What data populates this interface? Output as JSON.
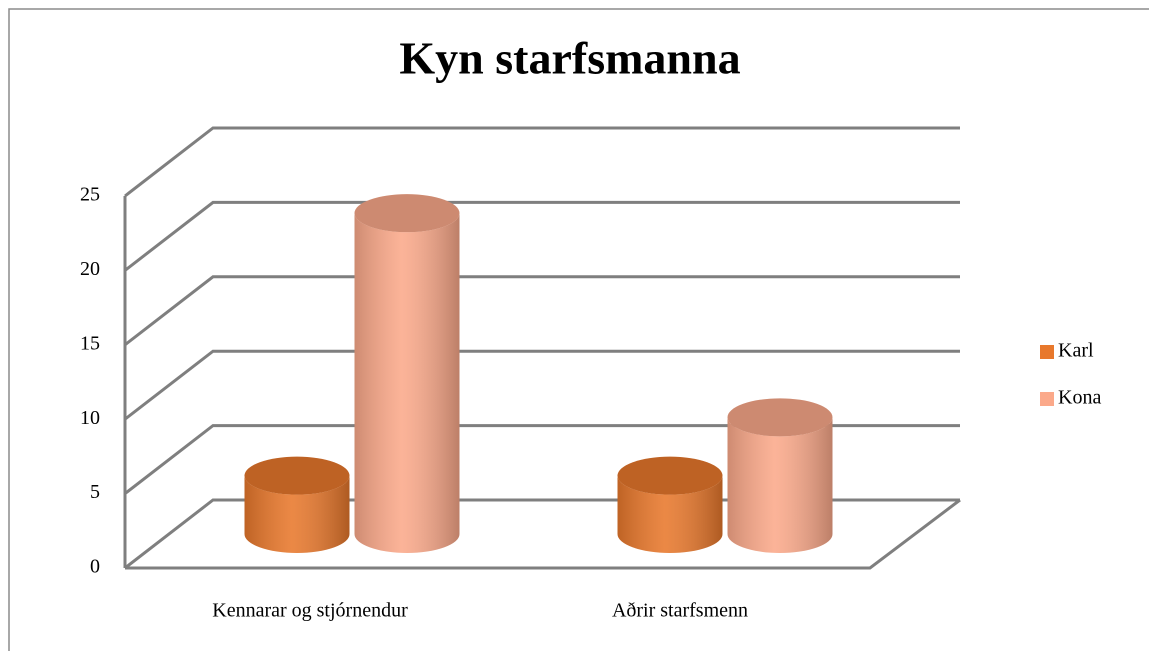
{
  "chart_data": {
    "type": "bar3d",
    "title": "Kyn starfsmanna",
    "categories": [
      "Kennarar og stjórnendur",
      "Aðrir starfsmenn"
    ],
    "series": [
      {
        "name": "Karl",
        "color": "#e8782c",
        "values": [
          4,
          4
        ]
      },
      {
        "name": "Kona",
        "color": "#fba98a",
        "values": [
          22,
          8
        ]
      }
    ],
    "ylim": [
      0,
      25
    ],
    "yticks": [
      0,
      5,
      10,
      15,
      20,
      25
    ],
    "grid": true,
    "legend": "right"
  }
}
